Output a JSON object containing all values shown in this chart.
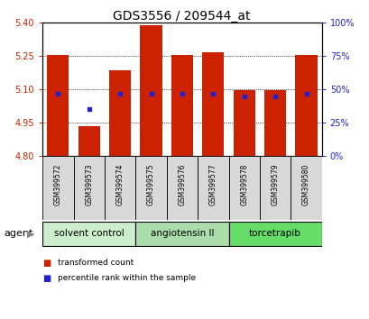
{
  "title": "GDS3556 / 209544_at",
  "samples": [
    "GSM399572",
    "GSM399573",
    "GSM399574",
    "GSM399575",
    "GSM399576",
    "GSM399577",
    "GSM399578",
    "GSM399579",
    "GSM399580"
  ],
  "bar_values": [
    5.252,
    4.935,
    5.185,
    5.385,
    5.252,
    5.265,
    5.098,
    5.098,
    5.252
  ],
  "percentile_values": [
    47,
    35,
    47,
    47,
    47,
    47,
    45,
    45,
    47
  ],
  "ymin": 4.8,
  "ymax": 5.4,
  "yticks": [
    4.8,
    4.95,
    5.1,
    5.25,
    5.4
  ],
  "right_yticks": [
    0,
    25,
    50,
    75,
    100
  ],
  "bar_color": "#cc2200",
  "blue_color": "#2222cc",
  "groups": [
    {
      "label": "solvent control",
      "indices": [
        0,
        1,
        2
      ],
      "color": "#cceecc"
    },
    {
      "label": "angiotensin II",
      "indices": [
        3,
        4,
        5
      ],
      "color": "#aaddaa"
    },
    {
      "label": "torcetrapib",
      "indices": [
        6,
        7,
        8
      ],
      "color": "#66dd66"
    }
  ],
  "agent_label": "agent",
  "legend_red": "transformed count",
  "legend_blue": "percentile rank within the sample",
  "bg_color": "#ffffff",
  "tick_color_left": "#cc2200",
  "tick_color_right": "#2222cc",
  "bar_width": 0.7,
  "grid_linestyle": ":"
}
